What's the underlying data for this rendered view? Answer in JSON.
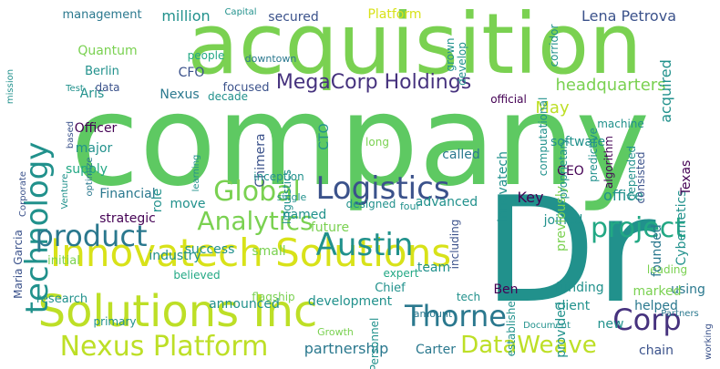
{
  "word_cloud": {
    "colors": {
      "background": "#ffffff",
      "green": "#5ec962",
      "light_green": "#7ad151",
      "yellow_green": "#bddf26",
      "yellow": "#d8e219",
      "teal": "#21918c",
      "blue": "#3b528b",
      "dark": "#440154",
      "cyan": "#2a788e",
      "indigo": "#46327e",
      "sea": "#22a884"
    },
    "words": [
      "company",
      "acquisition",
      "Dr",
      "Innovatech Solutions",
      "Solutions Inc",
      "technology",
      "Logistics",
      "Analytics",
      "Nexus Platform",
      "Austin",
      "project",
      "DataWeave",
      "Global",
      "product",
      "Corp",
      "Thorne",
      "MegaCorp Holdings",
      "headquarters",
      "Lena Petrova",
      "million",
      "secured",
      "Platform",
      "management",
      "Capital",
      "corridor",
      "Quantum",
      "Berlin",
      "Aris",
      "CFO",
      "data",
      "Nexus",
      "people",
      "May",
      "acquired",
      "Officer",
      "major",
      "supply",
      "Financial",
      "strategic",
      "success",
      "small",
      "announced",
      "research",
      "initial",
      "Maria Garcia",
      "software",
      "development",
      "partnership",
      "Carter",
      "chain",
      "funding",
      "client",
      "helped",
      "joined",
      "CEO",
      "Ben",
      "team",
      "new",
      "using",
      "leading",
      "marked",
      "office",
      "Key",
      "future",
      "named",
      "advanced",
      "called",
      "CTO",
      "Chimera",
      "Cybernetics",
      "Texas",
      "founded",
      "provided",
      "previously",
      "Innovatech",
      "predictive",
      "algorithm",
      "including",
      "consisted",
      "Chief",
      "flagship",
      "tech",
      "Personnel",
      "amount",
      "Growth",
      "expert",
      "downtown",
      "focused",
      "decade",
      "official",
      "computational",
      "machine",
      "depended",
      "proprietary",
      "role",
      "move",
      "industry",
      "believed",
      "primary",
      "optimize",
      "Venture",
      "Corporate",
      "based",
      "Test",
      "mission",
      "inception",
      "learning",
      "linguistics",
      "designed",
      "four",
      "single",
      "long",
      "grown",
      "develop",
      "established",
      "working",
      "Partners",
      "Document"
    ]
  }
}
